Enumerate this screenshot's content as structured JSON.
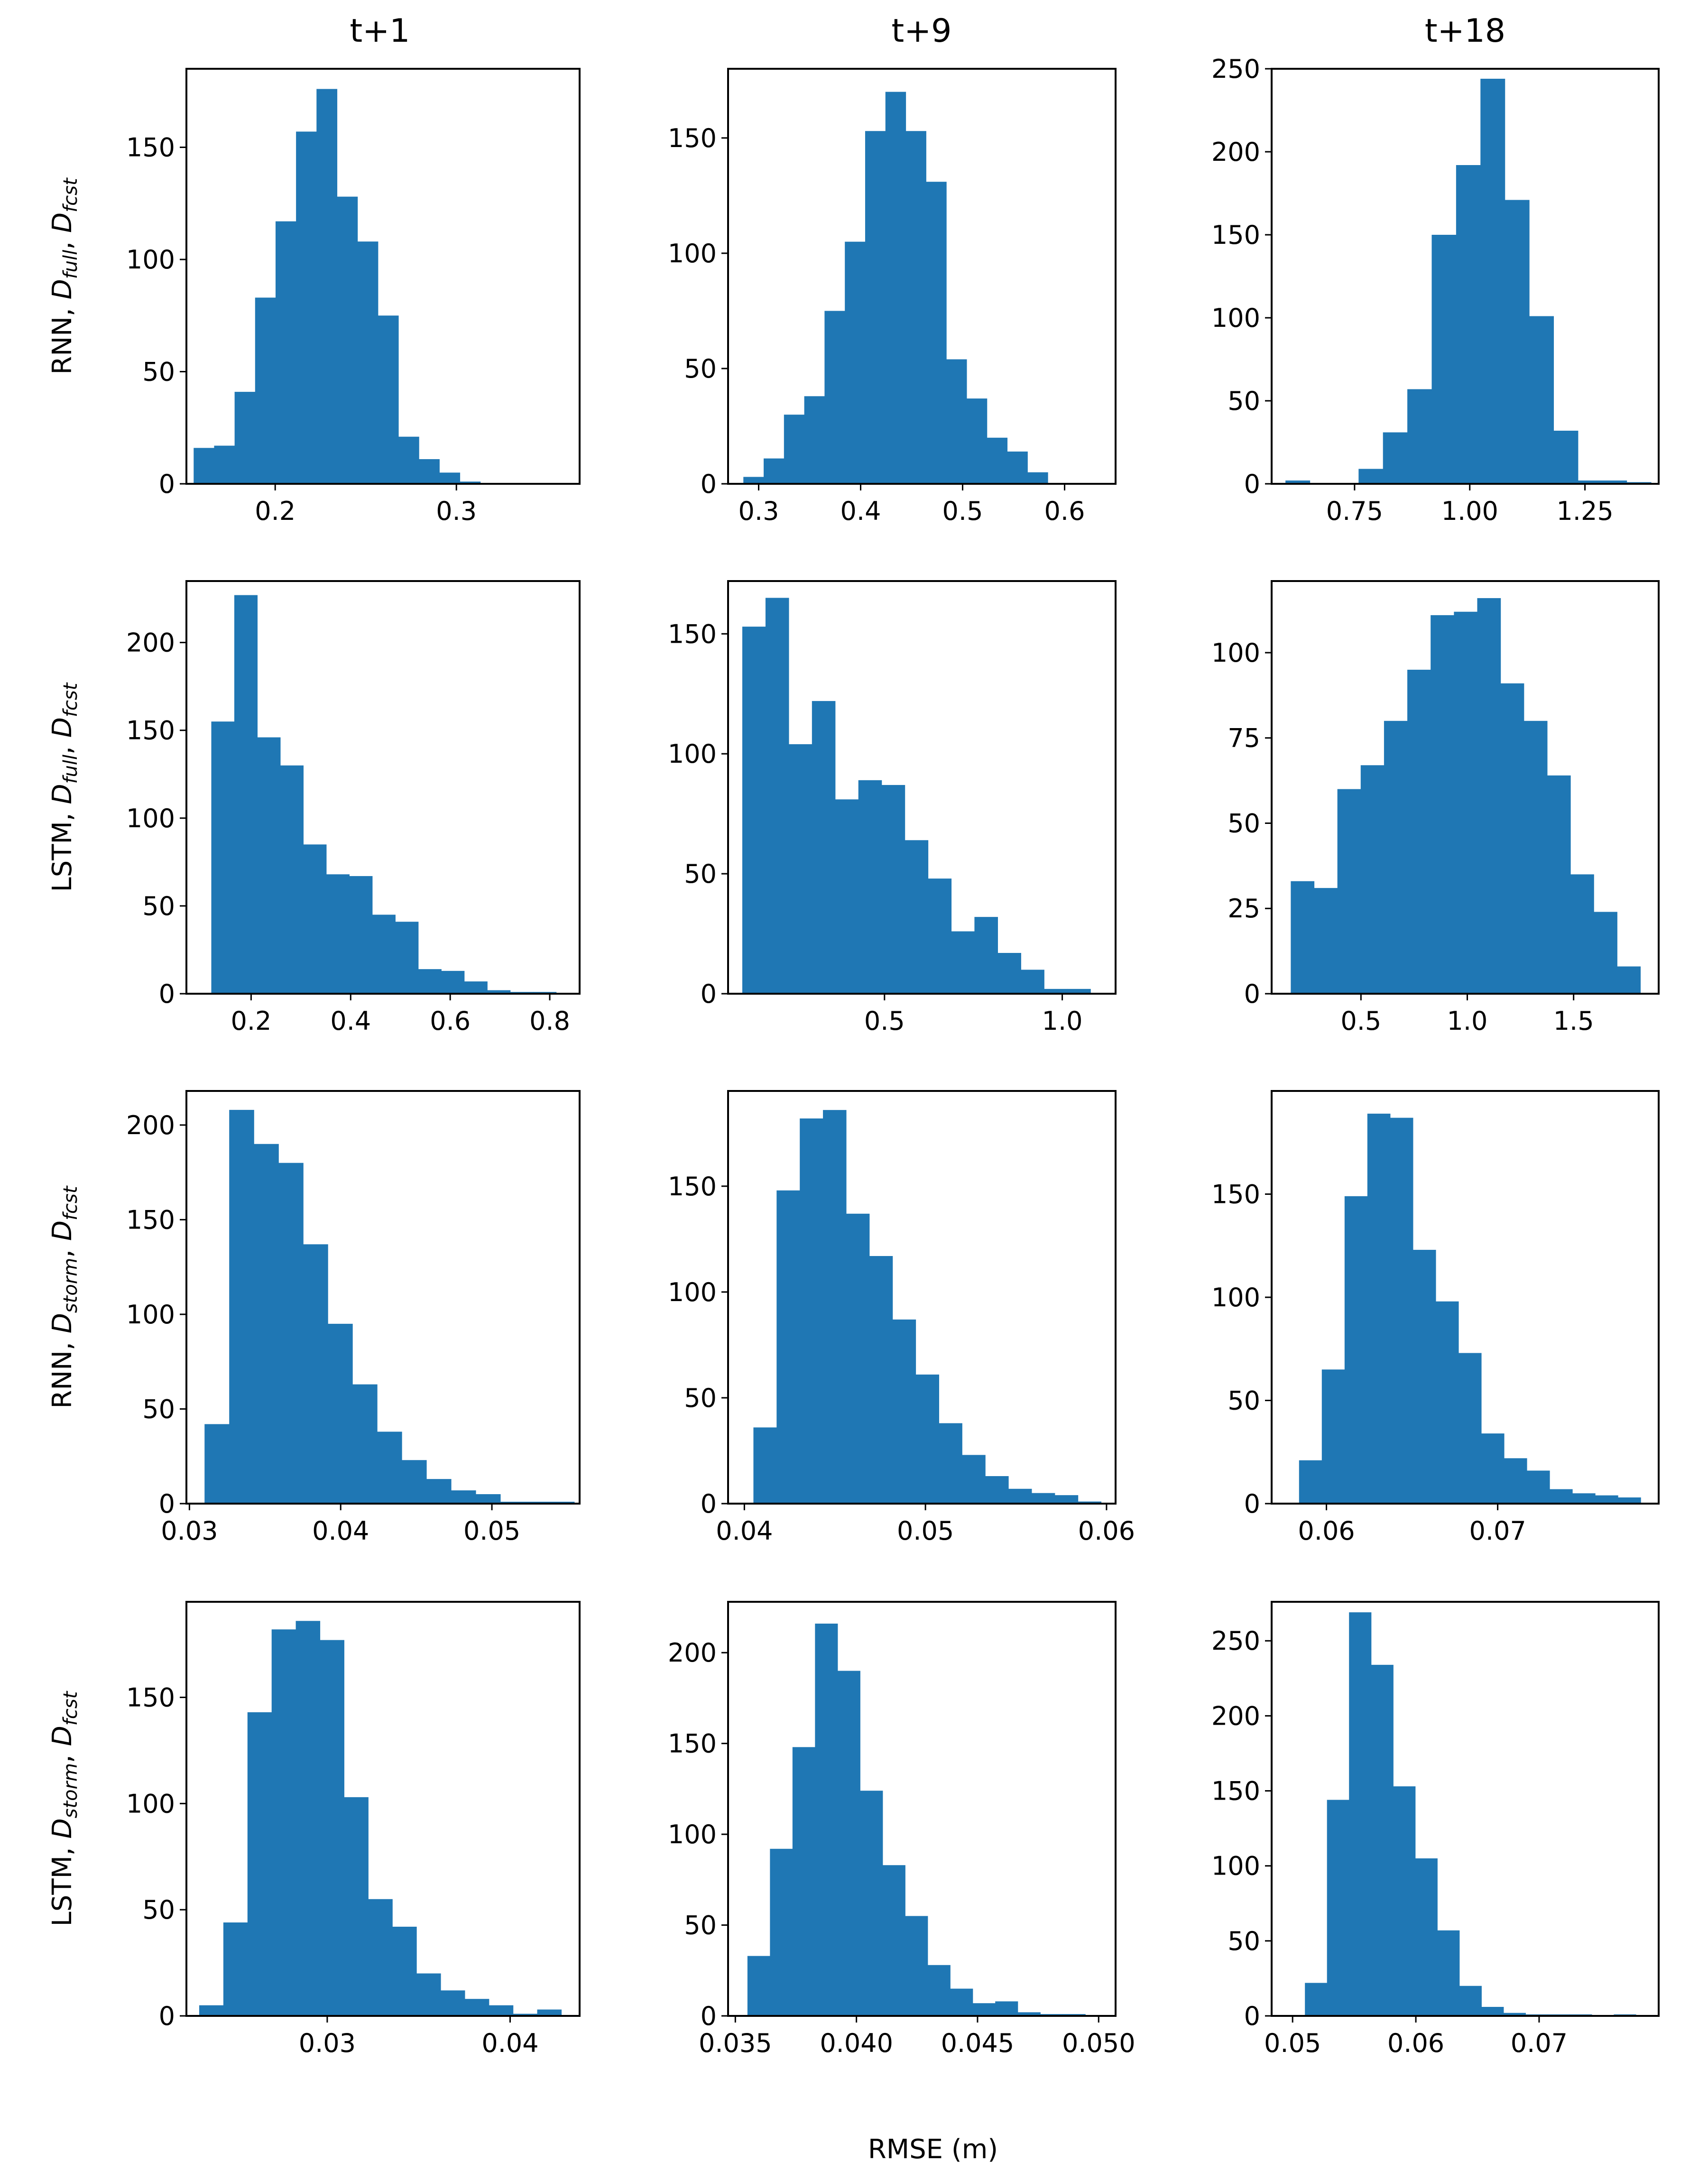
{
  "figure": {
    "column_titles": [
      "t+1",
      "t+9",
      "t+18"
    ],
    "row_labels": [
      {
        "model": "RNN",
        "dataset": "full",
        "forecast": "fcst"
      },
      {
        "model": "LSTM",
        "dataset": "full",
        "forecast": "fcst"
      },
      {
        "model": "RNN",
        "dataset": "storm",
        "forecast": "fcst"
      },
      {
        "model": "LSTM",
        "dataset": "storm",
        "forecast": "fcst"
      }
    ],
    "xlabel": "RMSE (m)",
    "bar_color": "#1f77b4"
  },
  "chart_data": [
    {
      "type": "bar",
      "row": 0,
      "col": 0,
      "title": "t+1",
      "ylabel": "RNN, Dfull, Dfcst",
      "xlabel": "",
      "xlim": [
        0.151,
        0.368
      ],
      "ylim": [
        0,
        185
      ],
      "xticks": [
        0.2,
        0.3
      ],
      "xtick_labels": [
        "0.2",
        "0.3"
      ],
      "yticks": [
        0,
        50,
        100,
        150
      ],
      "ytick_labels": [
        "0",
        "50",
        "100",
        "150"
      ],
      "bin_start": 0.155,
      "bin_width": 0.0113,
      "values": [
        16,
        17,
        41,
        83,
        117,
        157,
        176,
        128,
        108,
        75,
        21,
        11,
        5,
        1
      ]
    },
    {
      "type": "bar",
      "row": 0,
      "col": 1,
      "title": "t+9",
      "ylabel": "",
      "xlabel": "",
      "xlim": [
        0.27,
        0.65
      ],
      "ylim": [
        0,
        180
      ],
      "xticks": [
        0.3,
        0.4,
        0.5,
        0.6
      ],
      "xtick_labels": [
        "0.3",
        "0.4",
        "0.5",
        "0.6"
      ],
      "yticks": [
        0,
        50,
        100,
        150
      ],
      "ytick_labels": [
        "0",
        "50",
        "100",
        "150"
      ],
      "bin_start": 0.285,
      "bin_width": 0.0199,
      "values": [
        3,
        11,
        30,
        38,
        75,
        105,
        153,
        170,
        153,
        131,
        54,
        37,
        20,
        14,
        5
      ]
    },
    {
      "type": "bar",
      "row": 0,
      "col": 2,
      "title": "t+18",
      "ylabel": "",
      "xlabel": "",
      "xlim": [
        0.57,
        1.41
      ],
      "ylim": [
        0,
        250
      ],
      "xticks": [
        0.75,
        1.0,
        1.25
      ],
      "xtick_labels": [
        "0.75",
        "1.00",
        "1.25"
      ],
      "yticks": [
        0,
        50,
        100,
        150,
        200,
        250
      ],
      "ytick_labels": [
        "0",
        "50",
        "100",
        "150",
        "200",
        "250"
      ],
      "bin_start": 0.6,
      "bin_width": 0.0529,
      "values": [
        2,
        0,
        0,
        9,
        31,
        57,
        150,
        192,
        244,
        171,
        101,
        32,
        2,
        2,
        1
      ]
    },
    {
      "type": "bar",
      "row": 1,
      "col": 0,
      "title": "",
      "ylabel": "LSTM, Dfull, Dfcst",
      "xlabel": "",
      "xlim": [
        0.07,
        0.86
      ],
      "ylim": [
        0,
        235
      ],
      "xticks": [
        0.2,
        0.4,
        0.6,
        0.8
      ],
      "xtick_labels": [
        "0.2",
        "0.4",
        "0.6",
        "0.8"
      ],
      "yticks": [
        0,
        50,
        100,
        150,
        200
      ],
      "ytick_labels": [
        "0",
        "50",
        "100",
        "150",
        "200"
      ],
      "bin_start": 0.12,
      "bin_width": 0.0462,
      "values": [
        155,
        227,
        146,
        130,
        85,
        68,
        67,
        45,
        41,
        14,
        13,
        7,
        2,
        1,
        1
      ]
    },
    {
      "type": "bar",
      "row": 1,
      "col": 1,
      "title": "",
      "ylabel": "",
      "xlabel": "",
      "xlim": [
        0.06,
        1.15
      ],
      "ylim": [
        0,
        172
      ],
      "xticks": [
        0.5,
        1.0
      ],
      "xtick_labels": [
        "0.5",
        "1.0"
      ],
      "yticks": [
        0,
        50,
        100,
        150
      ],
      "ytick_labels": [
        "0",
        "50",
        "100",
        "150"
      ],
      "bin_start": 0.1,
      "bin_width": 0.0653,
      "values": [
        153,
        165,
        104,
        122,
        81,
        89,
        87,
        64,
        48,
        26,
        32,
        17,
        10,
        2,
        2
      ]
    },
    {
      "type": "bar",
      "row": 1,
      "col": 2,
      "title": "",
      "ylabel": "",
      "xlabel": "",
      "xlim": [
        0.08,
        1.9
      ],
      "ylim": [
        0,
        121
      ],
      "xticks": [
        0.5,
        1.0,
        1.5
      ],
      "xtick_labels": [
        "0.5",
        "1.0",
        "1.5"
      ],
      "yticks": [
        0,
        25,
        50,
        75,
        100
      ],
      "ytick_labels": [
        "0",
        "25",
        "50",
        "75",
        "100"
      ],
      "bin_start": 0.17,
      "bin_width": 0.1096,
      "values": [
        33,
        31,
        60,
        67,
        80,
        95,
        111,
        112,
        116,
        91,
        80,
        64,
        35,
        24,
        8
      ]
    },
    {
      "type": "bar",
      "row": 2,
      "col": 0,
      "title": "",
      "ylabel": "RNN, Dstorm, Dfcst",
      "xlabel": "",
      "xlim": [
        0.0298,
        0.0558
      ],
      "ylim": [
        0,
        218
      ],
      "xticks": [
        0.03,
        0.04,
        0.05
      ],
      "xtick_labels": [
        "0.03",
        "0.04",
        "0.05"
      ],
      "yticks": [
        0,
        50,
        100,
        150,
        200
      ],
      "ytick_labels": [
        "0",
        "50",
        "100",
        "150",
        "200"
      ],
      "bin_start": 0.031,
      "bin_width": 0.00163,
      "values": [
        42,
        208,
        190,
        180,
        137,
        95,
        63,
        38,
        23,
        13,
        7,
        5,
        1,
        1,
        1
      ]
    },
    {
      "type": "bar",
      "row": 2,
      "col": 1,
      "title": "",
      "ylabel": "",
      "xlabel": "",
      "xlim": [
        0.0391,
        0.0605
      ],
      "ylim": [
        0,
        195
      ],
      "xticks": [
        0.04,
        0.05,
        0.06
      ],
      "xtick_labels": [
        "0.04",
        "0.05",
        "0.06"
      ],
      "yticks": [
        0,
        50,
        100,
        150
      ],
      "ytick_labels": [
        "0",
        "50",
        "100",
        "150"
      ],
      "bin_start": 0.0405,
      "bin_width": 0.00128,
      "values": [
        36,
        148,
        182,
        186,
        137,
        117,
        87,
        61,
        38,
        23,
        13,
        7,
        5,
        4,
        1
      ]
    },
    {
      "type": "bar",
      "row": 2,
      "col": 2,
      "title": "",
      "ylabel": "",
      "xlabel": "",
      "xlim": [
        0.0568,
        0.0794
      ],
      "ylim": [
        0,
        200
      ],
      "xticks": [
        0.06,
        0.07
      ],
      "xtick_labels": [
        "0.06",
        "0.07"
      ],
      "yticks": [
        0,
        50,
        100,
        150
      ],
      "ytick_labels": [
        "0",
        "50",
        "100",
        "150"
      ],
      "bin_start": 0.0584,
      "bin_width": 0.00133,
      "values": [
        21,
        65,
        149,
        189,
        187,
        123,
        98,
        73,
        34,
        22,
        16,
        7,
        5,
        4,
        3
      ]
    },
    {
      "type": "bar",
      "row": 3,
      "col": 0,
      "title": "",
      "ylabel": "LSTM, Dstorm, Dfcst",
      "xlabel": "",
      "xlim": [
        0.0223,
        0.0438
      ],
      "ylim": [
        0,
        195
      ],
      "xticks": [
        0.03,
        0.04
      ],
      "xtick_labels": [
        "0.03",
        "0.04"
      ],
      "yticks": [
        0,
        50,
        100,
        150
      ],
      "ytick_labels": [
        "0",
        "50",
        "100",
        "150"
      ],
      "bin_start": 0.023,
      "bin_width": 0.00132,
      "values": [
        5,
        44,
        143,
        182,
        186,
        177,
        103,
        55,
        42,
        20,
        12,
        8,
        5,
        1,
        3
      ]
    },
    {
      "type": "bar",
      "row": 3,
      "col": 1,
      "title": "",
      "ylabel": "",
      "xlabel": "",
      "xlim": [
        0.0347,
        0.0507
      ],
      "ylim": [
        0,
        228
      ],
      "xticks": [
        0.035,
        0.04,
        0.045,
        0.05
      ],
      "xtick_labels": [
        "0.035",
        "0.040",
        "0.045",
        "0.050"
      ],
      "yticks": [
        0,
        50,
        100,
        150,
        200
      ],
      "ytick_labels": [
        "0",
        "50",
        "100",
        "150",
        "200"
      ],
      "bin_start": 0.0355,
      "bin_width": 0.00093,
      "values": [
        33,
        92,
        148,
        216,
        190,
        124,
        83,
        55,
        28,
        15,
        7,
        8,
        2,
        1,
        1
      ]
    },
    {
      "type": "bar",
      "row": 3,
      "col": 2,
      "title": "",
      "ylabel": "",
      "xlabel": "",
      "xlim": [
        0.0483,
        0.0797
      ],
      "ylim": [
        0,
        276
      ],
      "xticks": [
        0.05,
        0.06,
        0.07
      ],
      "xtick_labels": [
        "0.05",
        "0.06",
        "0.07"
      ],
      "yticks": [
        0,
        50,
        100,
        150,
        200,
        250
      ],
      "ytick_labels": [
        "0",
        "50",
        "100",
        "150",
        "200",
        "250"
      ],
      "bin_start": 0.051,
      "bin_width": 0.00179,
      "values": [
        22,
        144,
        269,
        234,
        153,
        105,
        57,
        20,
        6,
        2,
        1,
        1,
        1,
        0,
        1
      ]
    }
  ]
}
